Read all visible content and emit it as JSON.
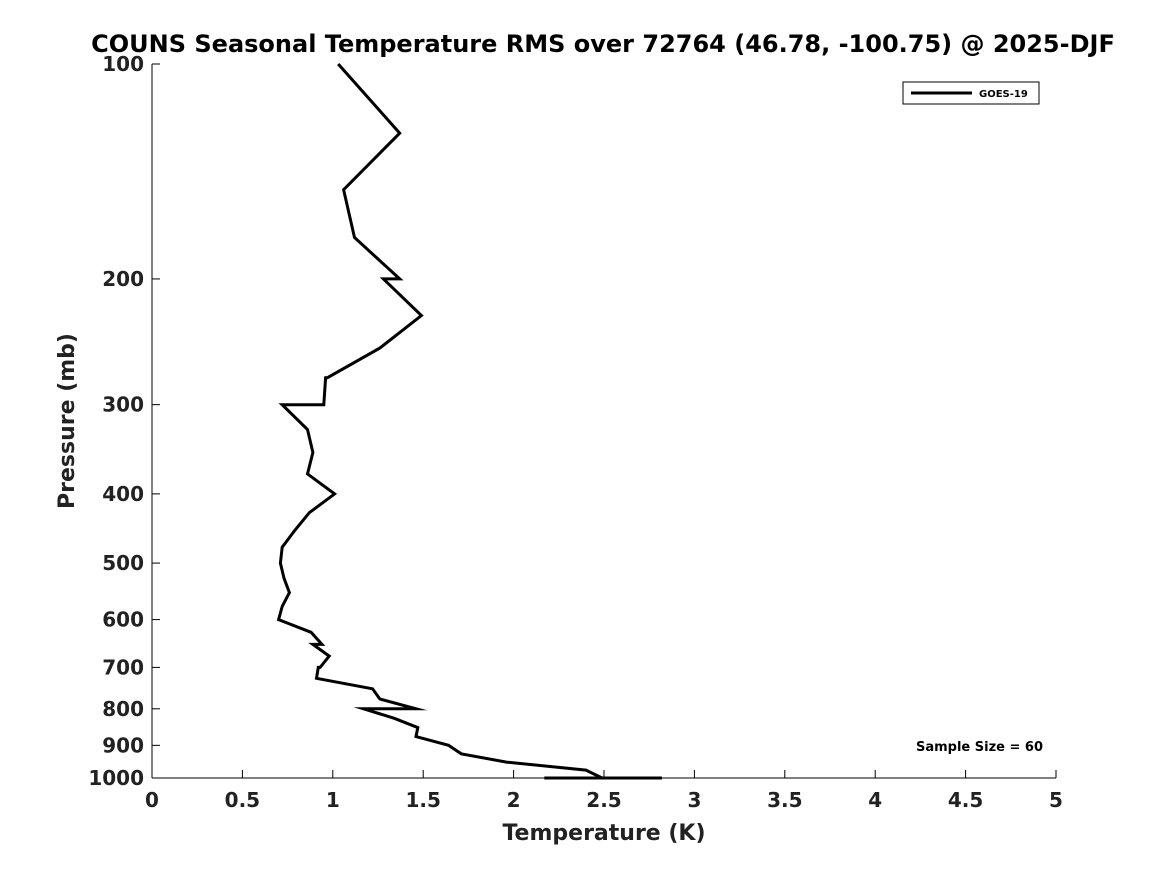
{
  "chart_data": {
    "type": "line",
    "title": "COUNS Seasonal Temperature RMS over 72764 (46.78, -100.75) @ 2025-DJF",
    "xlabel": "Temperature (K)",
    "ylabel": "Pressure (mb)",
    "xlim": [
      0,
      5
    ],
    "ylim": [
      100,
      1000
    ],
    "y_scale": "log",
    "y_inverted": true,
    "x_ticks": [
      "0",
      "0.5",
      "1",
      "1.5",
      "2",
      "2.5",
      "3",
      "3.5",
      "4",
      "4.5",
      "5"
    ],
    "x_tick_values": [
      0,
      0.5,
      1,
      1.5,
      2,
      2.5,
      3,
      3.5,
      4,
      4.5,
      5
    ],
    "y_ticks": [
      "100",
      "200",
      "300",
      "400",
      "500",
      "600",
      "700",
      "800",
      "900",
      "1000"
    ],
    "y_tick_values": [
      100,
      200,
      300,
      400,
      500,
      600,
      700,
      800,
      900,
      1000
    ],
    "grid": false,
    "legend_position": "top-right",
    "annotation": "Sample Size = 60",
    "series": [
      {
        "name": "GOES-19",
        "color": "#000000",
        "points": [
          [
            1.03,
            100
          ],
          [
            1.37,
            125
          ],
          [
            1.06,
            150
          ],
          [
            1.12,
            175
          ],
          [
            1.37,
            200
          ],
          [
            1.28,
            200
          ],
          [
            1.49,
            225
          ],
          [
            1.26,
            250
          ],
          [
            0.97,
            275
          ],
          [
            0.96,
            275
          ],
          [
            0.95,
            300
          ],
          [
            0.72,
            300
          ],
          [
            0.86,
            325
          ],
          [
            0.89,
            350
          ],
          [
            0.86,
            375
          ],
          [
            1.01,
            400
          ],
          [
            0.87,
            425
          ],
          [
            0.79,
            450
          ],
          [
            0.72,
            475
          ],
          [
            0.71,
            500
          ],
          [
            0.73,
            525
          ],
          [
            0.76,
            550
          ],
          [
            0.72,
            575
          ],
          [
            0.7,
            600
          ],
          [
            0.88,
            625
          ],
          [
            0.94,
            650
          ],
          [
            0.89,
            650
          ],
          [
            0.98,
            675
          ],
          [
            0.93,
            700
          ],
          [
            0.92,
            700
          ],
          [
            0.91,
            725
          ],
          [
            1.22,
            750
          ],
          [
            1.26,
            775
          ],
          [
            1.46,
            800
          ],
          [
            1.17,
            800
          ],
          [
            1.34,
            825
          ],
          [
            1.47,
            850
          ],
          [
            1.46,
            875
          ],
          [
            1.64,
            900
          ],
          [
            1.71,
            925
          ],
          [
            1.96,
            950
          ],
          [
            2.4,
            975
          ],
          [
            2.49,
            1000
          ],
          [
            2.17,
            1000
          ],
          [
            2.82,
            1000
          ],
          [
            2.66,
            1000
          ]
        ]
      }
    ]
  }
}
